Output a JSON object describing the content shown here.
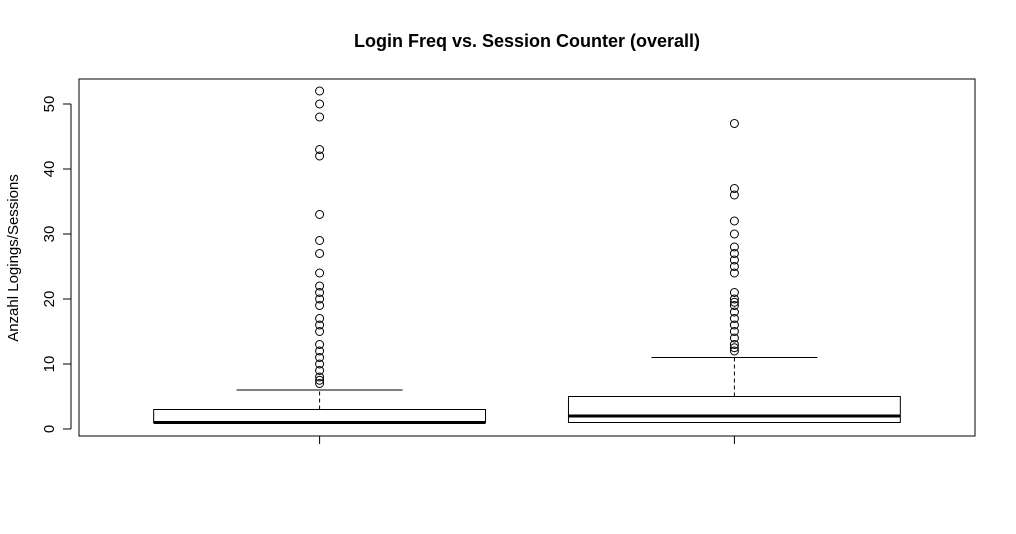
{
  "chart_data": {
    "type": "boxplot",
    "title": "Login Freq vs. Session Counter (overall)",
    "xlabel": "",
    "ylabel": "Anzahl Logings/Sessions",
    "ylim": [
      -1,
      53
    ],
    "yticks": [
      0,
      10,
      20,
      30,
      40,
      50
    ],
    "grid": false,
    "legend": "none",
    "categories": [
      "",
      ""
    ],
    "series": [
      {
        "min": 1,
        "q1": 1,
        "median": 1,
        "q3": 3,
        "max": 6,
        "outliers": [
          7,
          7.5,
          8,
          9,
          10,
          11,
          12,
          13,
          15,
          16,
          17,
          19,
          20,
          21,
          22,
          24,
          27,
          29,
          33,
          42,
          43,
          48,
          50,
          52
        ]
      },
      {
        "min": 1,
        "q1": 1,
        "median": 2,
        "q3": 5,
        "max": 11,
        "outliers": [
          12,
          12.5,
          13,
          14,
          15,
          16,
          17,
          18,
          19,
          19.5,
          20,
          21,
          24,
          25,
          26,
          27,
          28,
          30,
          32,
          36,
          37,
          47
        ]
      }
    ]
  }
}
